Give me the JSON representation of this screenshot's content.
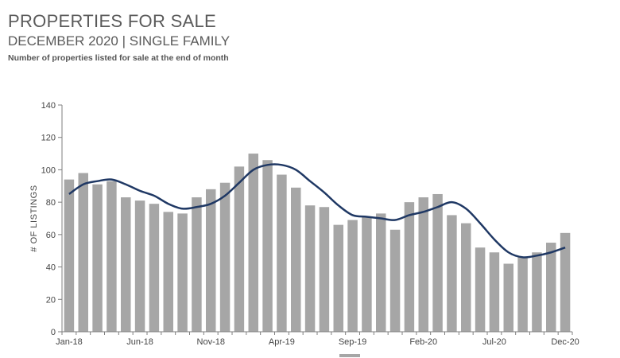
{
  "header": {
    "title": "PROPERTIES FOR SALE",
    "subtitle": "DECEMBER 2020 | SINGLE FAMILY",
    "note": "Number of properties listed for sale at the end of month"
  },
  "colors": {
    "bar": "#a6a6a6",
    "line": "#1f3864",
    "axis": "#7f7f7f",
    "legend_swatch": "#a6a6a6"
  },
  "chart_data": {
    "type": "bar",
    "title": "",
    "xlabel": "",
    "ylabel": "# OF LISTINGS",
    "ylim": [
      0,
      140
    ],
    "yticks": [
      0,
      20,
      40,
      60,
      80,
      100,
      120,
      140
    ],
    "grid": false,
    "legend": "bottom",
    "categories": [
      "Jan-18",
      "Feb-18",
      "Mar-18",
      "Apr-18",
      "May-18",
      "Jun-18",
      "Jul-18",
      "Aug-18",
      "Sep-18",
      "Oct-18",
      "Nov-18",
      "Dec-18",
      "Jan-19",
      "Feb-19",
      "Mar-19",
      "Apr-19",
      "May-19",
      "Jun-19",
      "Jul-19",
      "Aug-19",
      "Sep-19",
      "Oct-19",
      "Nov-19",
      "Dec-19",
      "Jan-20",
      "Feb-20",
      "Mar-20",
      "Apr-20",
      "May-20",
      "Jun-20",
      "Jul-20",
      "Aug-20",
      "Sep-20",
      "Oct-20",
      "Nov-20",
      "Dec-20"
    ],
    "xtick_labels": [
      "Jan-18",
      "Jun-18",
      "Nov-18",
      "Apr-19",
      "Sep-19",
      "Feb-20",
      "Jul-20",
      "Dec-20"
    ],
    "series": [
      {
        "type": "bar",
        "values": [
          94,
          98,
          91,
          93,
          83,
          81,
          79,
          74,
          73,
          83,
          88,
          92,
          102,
          110,
          106,
          97,
          89,
          78,
          77,
          66,
          69,
          71,
          73,
          63,
          80,
          83,
          85,
          72,
          67,
          52,
          49,
          42,
          46,
          49,
          55,
          61
        ]
      },
      {
        "type": "line",
        "values": [
          85,
          91,
          93,
          94,
          91,
          87,
          84,
          79,
          76,
          77,
          79,
          84,
          92,
          100,
          103,
          103,
          100,
          93,
          86,
          78,
          72,
          71,
          70,
          69,
          72,
          74,
          77,
          80,
          76,
          67,
          57,
          49,
          46,
          47,
          49,
          52
        ]
      }
    ]
  }
}
